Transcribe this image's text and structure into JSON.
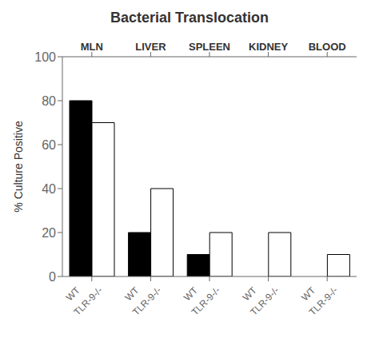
{
  "chart_data": {
    "type": "bar",
    "title": "Bacterial Translocation",
    "ylabel": "% Culture Positive",
    "categories": [
      "MLN",
      "LIVER",
      "SPLEEN",
      "KIDNEY",
      "BLOOD"
    ],
    "series": [
      {
        "name": "WT",
        "color": "#000000",
        "values": [
          80,
          20,
          10,
          0,
          0
        ]
      },
      {
        "name": "TLR-9-/-",
        "color": "#ffffff",
        "values": [
          70,
          40,
          20,
          20,
          10
        ]
      }
    ],
    "ylim": [
      0,
      100
    ],
    "yticks": [
      0,
      20,
      40,
      60,
      80,
      100
    ],
    "grid": false,
    "legend": false
  }
}
